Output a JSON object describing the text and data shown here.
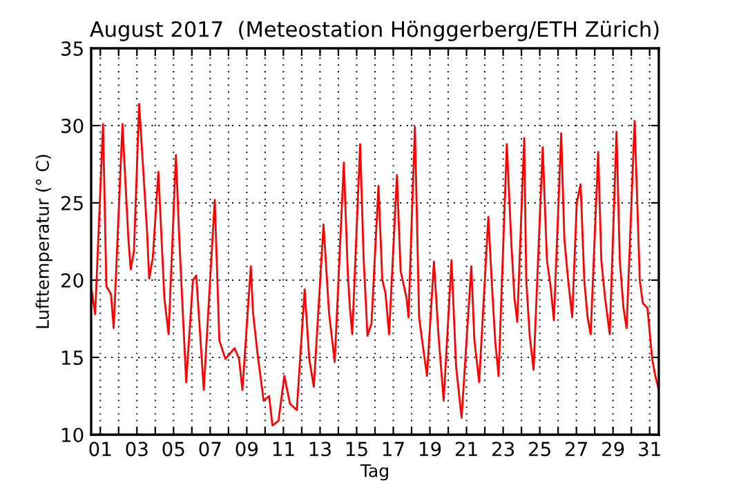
{
  "chart_data": {
    "type": "line",
    "title": "August 2017  (Meteostation Hönggerberg/ETH Zürich)",
    "xlabel": "Tag",
    "ylabel": "Lufttemperatur (° C)",
    "xlim": [
      0.5,
      31.5
    ],
    "ylim": [
      10,
      35
    ],
    "yticks": [
      10,
      15,
      20,
      25,
      30,
      35
    ],
    "xticks": [
      {
        "value": 1,
        "label": "01"
      },
      {
        "value": 2,
        "label": null
      },
      {
        "value": 3,
        "label": "03"
      },
      {
        "value": 4,
        "label": null
      },
      {
        "value": 5,
        "label": "05"
      },
      {
        "value": 6,
        "label": null
      },
      {
        "value": 7,
        "label": "07"
      },
      {
        "value": 8,
        "label": null
      },
      {
        "value": 9,
        "label": "09"
      },
      {
        "value": 10,
        "label": null
      },
      {
        "value": 11,
        "label": "11"
      },
      {
        "value": 12,
        "label": null
      },
      {
        "value": 13,
        "label": "13"
      },
      {
        "value": 14,
        "label": null
      },
      {
        "value": 15,
        "label": "15"
      },
      {
        "value": 16,
        "label": null
      },
      {
        "value": 17,
        "label": "17"
      },
      {
        "value": 18,
        "label": null
      },
      {
        "value": 19,
        "label": "19"
      },
      {
        "value": 20,
        "label": null
      },
      {
        "value": 21,
        "label": "21"
      },
      {
        "value": 22,
        "label": null
      },
      {
        "value": 23,
        "label": "23"
      },
      {
        "value": 24,
        "label": null
      },
      {
        "value": 25,
        "label": "25"
      },
      {
        "value": 26,
        "label": null
      },
      {
        "value": 27,
        "label": "27"
      },
      {
        "value": 28,
        "label": null
      },
      {
        "value": 29,
        "label": "29"
      },
      {
        "value": 30,
        "label": null
      },
      {
        "value": 31,
        "label": "31"
      }
    ],
    "grid": true,
    "marker": "none",
    "line_style": "solid",
    "series": [
      {
        "color": "#ff0000",
        "x": [
          0.52,
          0.72,
          1.15,
          1.33,
          1.58,
          1.73,
          2.21,
          2.53,
          2.66,
          2.84,
          3.12,
          3.55,
          3.67,
          3.87,
          4.17,
          4.5,
          4.73,
          5.13,
          5.31,
          5.69,
          6.06,
          6.24,
          6.65,
          7.25,
          7.5,
          7.83,
          8.33,
          8.58,
          8.76,
          9.22,
          9.34,
          9.59,
          9.92,
          10.22,
          10.4,
          10.73,
          11.05,
          11.36,
          11.73,
          12.16,
          12.41,
          12.66,
          13.19,
          13.49,
          13.8,
          14.3,
          14.51,
          14.63,
          14.76,
          15.19,
          15.38,
          15.59,
          15.81,
          16.19,
          16.4,
          16.57,
          16.77,
          17.2,
          17.4,
          17.73,
          17.83,
          18.18,
          18.41,
          18.61,
          18.84,
          19.22,
          19.47,
          19.75,
          20.18,
          20.43,
          20.73,
          21.26,
          21.43,
          21.69,
          22.19,
          22.39,
          22.57,
          22.75,
          23.2,
          23.45,
          23.62,
          23.77,
          24.15,
          24.26,
          24.45,
          24.66,
          25.16,
          25.39,
          25.59,
          25.77,
          26.17,
          26.34,
          26.55,
          26.77,
          27.02,
          27.23,
          27.43,
          27.61,
          27.78,
          28.19,
          28.36,
          28.57,
          28.82,
          29.19,
          29.37,
          29.57,
          29.74,
          30.18,
          30.46,
          30.63,
          30.88,
          31.14,
          31.31,
          31.5
        ],
        "values": [
          19.4,
          17.8,
          30.1,
          19.6,
          19.1,
          16.9,
          30.1,
          22.7,
          20.7,
          21.9,
          31.4,
          23.2,
          20.1,
          21.5,
          27,
          18.8,
          16.5,
          28.1,
          22.7,
          13.4,
          20,
          20.3,
          12.9,
          25.2,
          16.1,
          14.9,
          15.6,
          14.9,
          12.9,
          20.9,
          17.9,
          15.2,
          12.2,
          12.5,
          10.6,
          10.9,
          13.8,
          12,
          11.6,
          19.4,
          14.9,
          13.1,
          23.6,
          17.9,
          14.7,
          27.6,
          20.6,
          18.2,
          16.5,
          28.8,
          21.4,
          16.4,
          17.2,
          26.1,
          20,
          19.2,
          16.5,
          26.8,
          20.6,
          18.8,
          17.6,
          29.9,
          17.6,
          15.8,
          13.8,
          21.2,
          16.4,
          12.2,
          21.3,
          14.4,
          11.1,
          20.9,
          16.1,
          13.4,
          24.1,
          19.6,
          16,
          13.8,
          28.8,
          22.3,
          18.8,
          17.3,
          29.2,
          20,
          16.4,
          14.2,
          28.6,
          21.3,
          19.6,
          17.4,
          29.5,
          22.7,
          20,
          17.6,
          25,
          26.2,
          20,
          17.6,
          16.5,
          28.3,
          21.3,
          18.8,
          16.5,
          29.6,
          21.3,
          18.2,
          16.9,
          30.3,
          20,
          18.5,
          18.2,
          14.9,
          13.8,
          12.9
        ]
      }
    ]
  }
}
